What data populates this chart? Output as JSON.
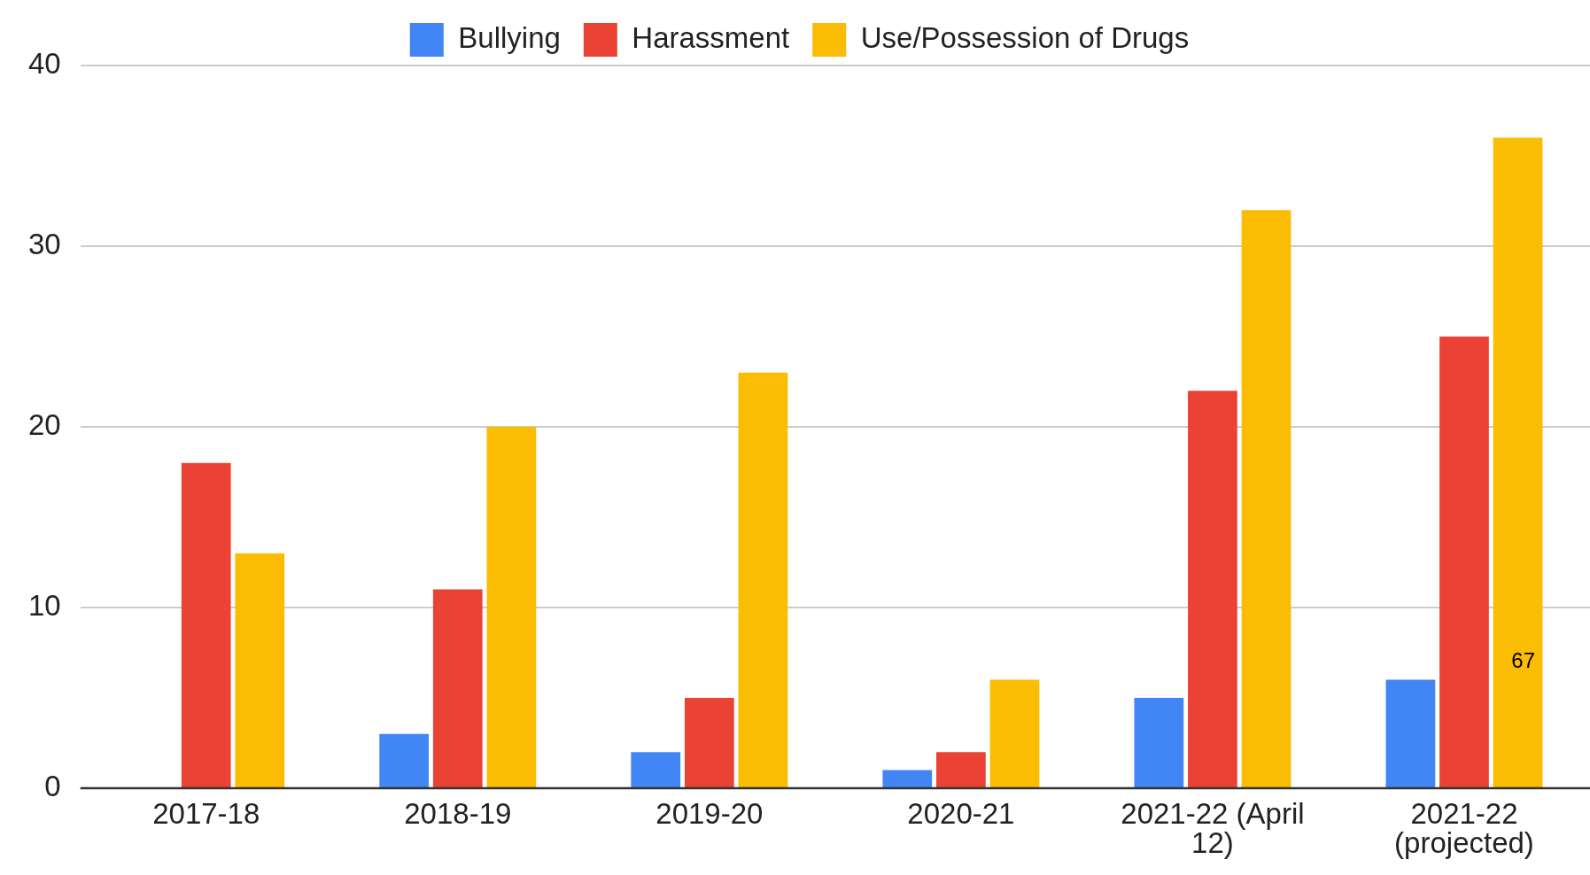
{
  "chart_data": {
    "type": "bar",
    "categories": [
      "2017-18",
      "2018-19",
      "2019-20",
      "2020-21",
      "2021-22 (April 12)",
      "2021-22 (projected)"
    ],
    "series": [
      {
        "name": "Bullying",
        "color": "#4285f4",
        "values": [
          0,
          3,
          2,
          1,
          5,
          6
        ]
      },
      {
        "name": "Harassment",
        "color": "#ea4335",
        "values": [
          18,
          11,
          5,
          2,
          22,
          25
        ]
      },
      {
        "name": "Use/Possession of Drugs",
        "color": "#fbbc04",
        "values": [
          13,
          20,
          23,
          6,
          32,
          36
        ]
      }
    ],
    "ylim": [
      0,
      40
    ],
    "yticks": [
      0,
      10,
      20,
      30,
      40
    ],
    "grid": "y",
    "legend": "top",
    "annotations": [
      "67"
    ]
  }
}
